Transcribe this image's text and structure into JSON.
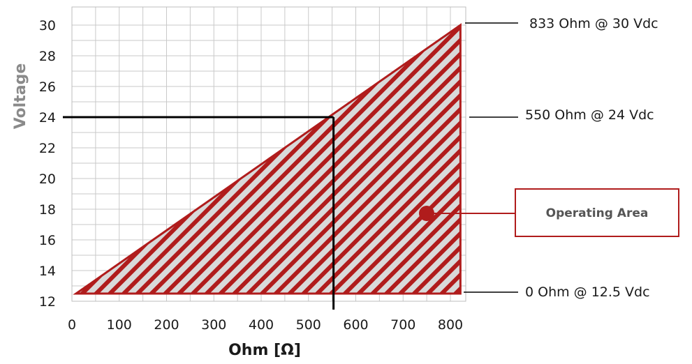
{
  "chart_data": {
    "type": "area",
    "xlabel": "Ohm [Ω]",
    "ylabel": "Voltage",
    "xlim": [
      0,
      833
    ],
    "ylim": [
      12,
      30
    ],
    "x_ticks": [
      0,
      100,
      200,
      300,
      400,
      500,
      600,
      700,
      800
    ],
    "y_ticks": [
      12,
      14,
      16,
      18,
      20,
      22,
      24,
      26,
      28,
      30
    ],
    "grid": true,
    "region": {
      "label": "Operating Area",
      "points": [
        [
          0,
          12.5
        ],
        [
          833,
          30
        ],
        [
          833,
          12.5
        ]
      ],
      "color": "#b01c1c",
      "fill": "#d9d9d9"
    },
    "reference_point": {
      "x": 550,
      "y": 24,
      "color": "#000000"
    },
    "annotations": [
      {
        "text": "833 Ohm @ 30 Vdc",
        "x": 833,
        "y": 30
      },
      {
        "text": "550 Ohm @ 24 Vdc",
        "x": 550,
        "y": 24
      },
      {
        "text": "0 Ohm @ 12.5 Vdc",
        "x": 833,
        "y": 12.5
      }
    ]
  }
}
